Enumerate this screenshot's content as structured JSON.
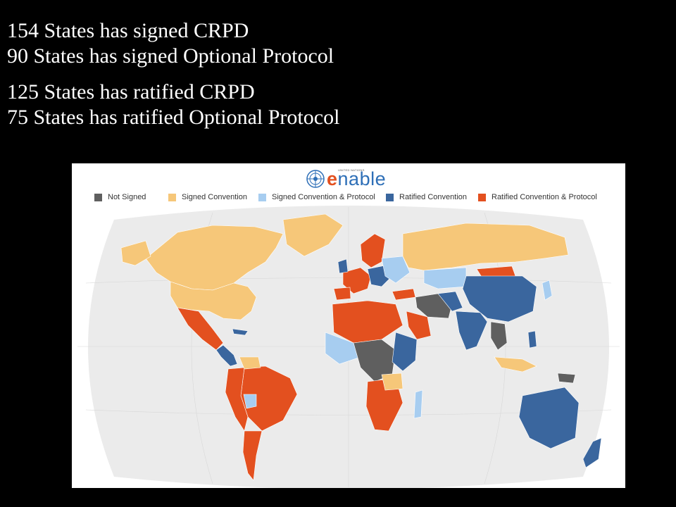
{
  "stats": {
    "signed_crpd": "154 States has signed CRPD",
    "signed_op": "90 States has signed Optional Protocol",
    "ratified_crpd": "125 States has ratified CRPD",
    "ratified_op": "75 States has ratified Optional Protocol"
  },
  "logo": {
    "small_text": "UNITED NATIONS",
    "e_letter": "e",
    "rest": "nable",
    "icon": "un-emblem-icon"
  },
  "legend": [
    {
      "label": "Not Signed",
      "color": "#5f5f5f"
    },
    {
      "label": "Signed Convention",
      "color": "#f6c779"
    },
    {
      "label": "Signed Convention & Protocol",
      "color": "#a7cdf0"
    },
    {
      "label": "Ratified Convention",
      "color": "#3a669e"
    },
    {
      "label": "Ratified Convention & Protocol",
      "color": "#e3501f"
    }
  ],
  "colors": {
    "background": "#000000",
    "ocean": "#ebebeb",
    "not_signed": "#5f5f5f",
    "signed_convention": "#f6c779",
    "signed_convention_protocol": "#a7cdf0",
    "ratified_convention": "#3a669e",
    "ratified_convention_protocol": "#e3501f"
  }
}
